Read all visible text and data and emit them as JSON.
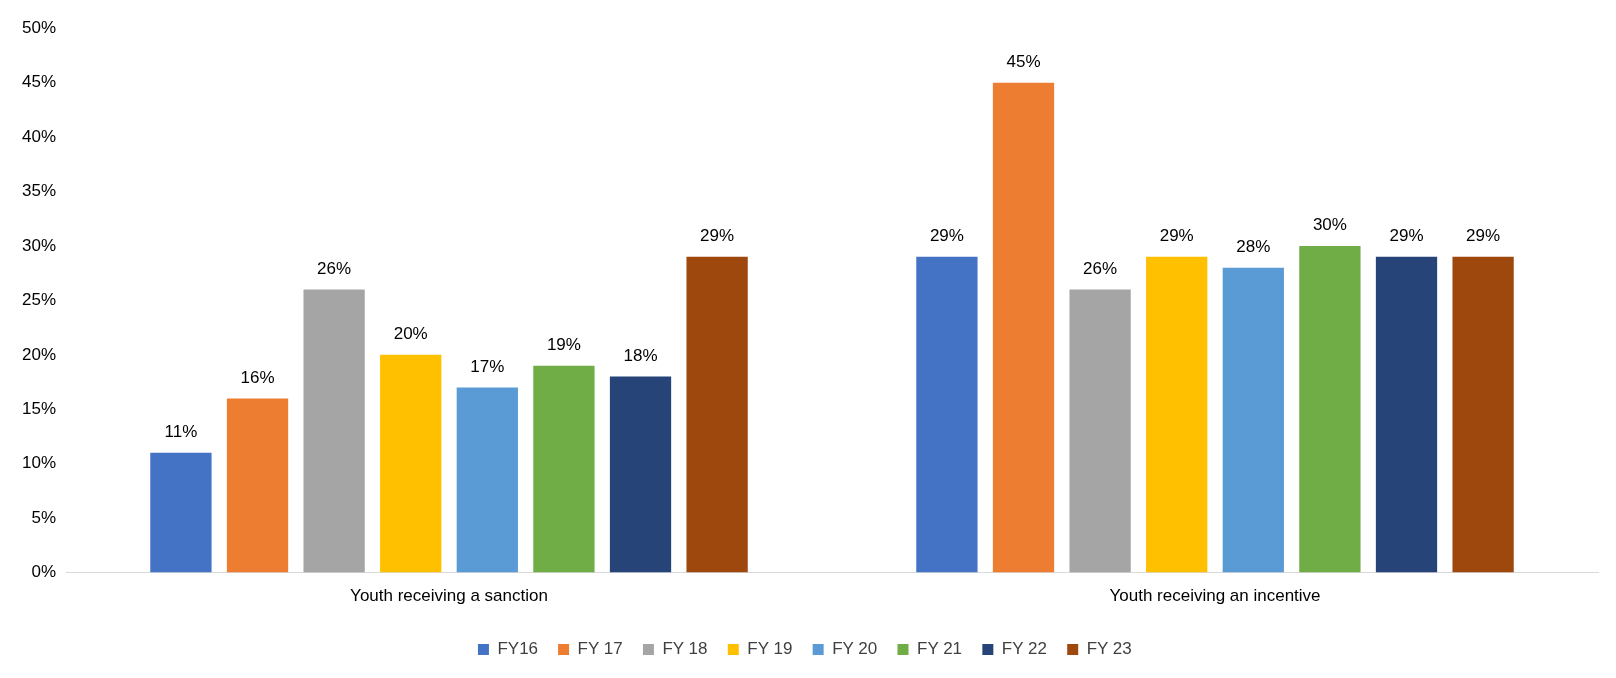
{
  "chart_data": {
    "type": "bar",
    "categories": [
      "Youth receiving a sanction",
      "Youth receiving an incentive"
    ],
    "series": [
      {
        "name": "FY16",
        "color": "#4472c4",
        "values": [
          11,
          29
        ],
        "value_labels": [
          "11%",
          "29%"
        ]
      },
      {
        "name": "FY 17",
        "color": "#ed7d31",
        "values": [
          16,
          45
        ],
        "value_labels": [
          "16%",
          "45%"
        ]
      },
      {
        "name": "FY 18",
        "color": "#a5a5a5",
        "values": [
          26,
          26
        ],
        "value_labels": [
          "26%",
          "26%"
        ]
      },
      {
        "name": "FY 19",
        "color": "#ffc000",
        "values": [
          20,
          29
        ],
        "value_labels": [
          "20%",
          "29%"
        ]
      },
      {
        "name": "FY 20",
        "color": "#5b9bd5",
        "values": [
          17,
          28
        ],
        "value_labels": [
          "17%",
          "28%"
        ]
      },
      {
        "name": "FY 21",
        "color": "#70ad47",
        "values": [
          19,
          30
        ],
        "value_labels": [
          "19%",
          "30%"
        ]
      },
      {
        "name": "FY 22",
        "color": "#264478",
        "values": [
          18,
          29
        ],
        "value_labels": [
          "18%",
          "29%"
        ]
      },
      {
        "name": "FY 23",
        "color": "#9e480e",
        "values": [
          29,
          29
        ],
        "value_labels": [
          "29%",
          "29%"
        ]
      }
    ],
    "ylim": [
      0,
      50
    ],
    "yticks": [
      {
        "value": 0,
        "label": "0%"
      },
      {
        "value": 5,
        "label": "5%"
      },
      {
        "value": 10,
        "label": "10%"
      },
      {
        "value": 15,
        "label": "15%"
      },
      {
        "value": 20,
        "label": "20%"
      },
      {
        "value": 25,
        "label": "25%"
      },
      {
        "value": 30,
        "label": "30%"
      },
      {
        "value": 35,
        "label": "35%"
      },
      {
        "value": 40,
        "label": "40%"
      },
      {
        "value": 45,
        "label": "45%"
      },
      {
        "value": 50,
        "label": "50%"
      }
    ],
    "grid": false,
    "legend": "bottom"
  }
}
